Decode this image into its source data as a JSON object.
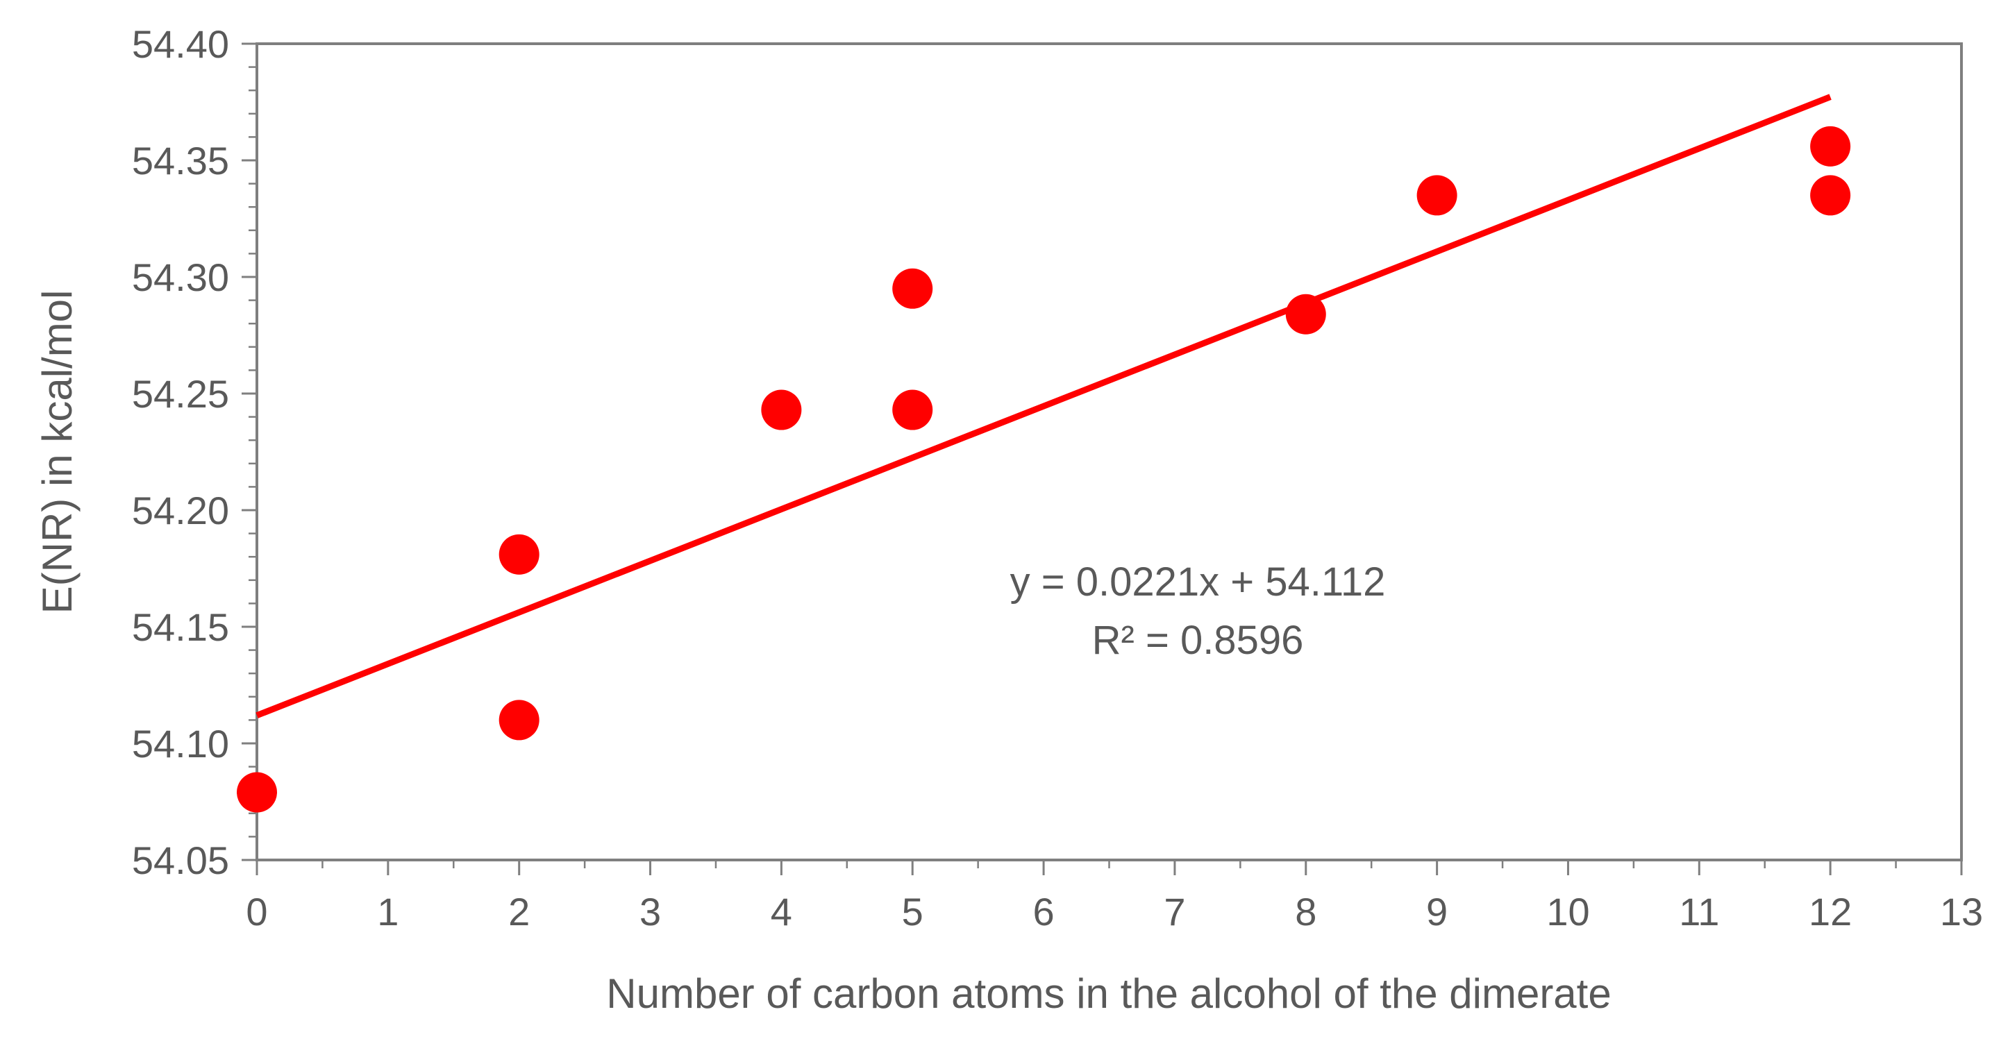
{
  "chart_data": {
    "type": "scatter",
    "title": "",
    "xlabel": "Number of carbon atoms in the alcohol of the dimerate",
    "ylabel": "E(NR) in kcal/mol",
    "xlim": [
      0,
      13
    ],
    "ylim": [
      54.05,
      54.4
    ],
    "x_ticks": [
      0,
      1,
      2,
      3,
      4,
      5,
      6,
      7,
      8,
      9,
      10,
      11,
      12,
      13
    ],
    "x_tick_labels": [
      "0",
      "1",
      "2",
      "3",
      "4",
      "5",
      "6",
      "7",
      "8",
      "9",
      "10",
      "11",
      "12",
      "13"
    ],
    "y_ticks": [
      54.05,
      54.1,
      54.15,
      54.2,
      54.25,
      54.3,
      54.35,
      54.4
    ],
    "y_tick_labels": [
      "54.05",
      "54.10",
      "54.15",
      "54.20",
      "54.25",
      "54.30",
      "54.35",
      "54.40"
    ],
    "grid": false,
    "legend": "none",
    "series": [
      {
        "color": "#ff0000",
        "x": [
          0,
          2,
          2,
          4,
          5,
          5,
          8,
          9,
          12,
          12
        ],
        "y": [
          54.079,
          54.11,
          54.181,
          54.243,
          54.243,
          54.295,
          54.284,
          54.335,
          54.356,
          54.335
        ]
      }
    ],
    "trendline": {
      "type": "linear",
      "slope": 0.0221,
      "intercept": 54.112,
      "x_range": [
        0,
        12
      ],
      "color": "#ff0000"
    },
    "annotations": {
      "equation": "y = 0.0221x + 54.112",
      "r_squared": "R² = 0.8596"
    }
  }
}
